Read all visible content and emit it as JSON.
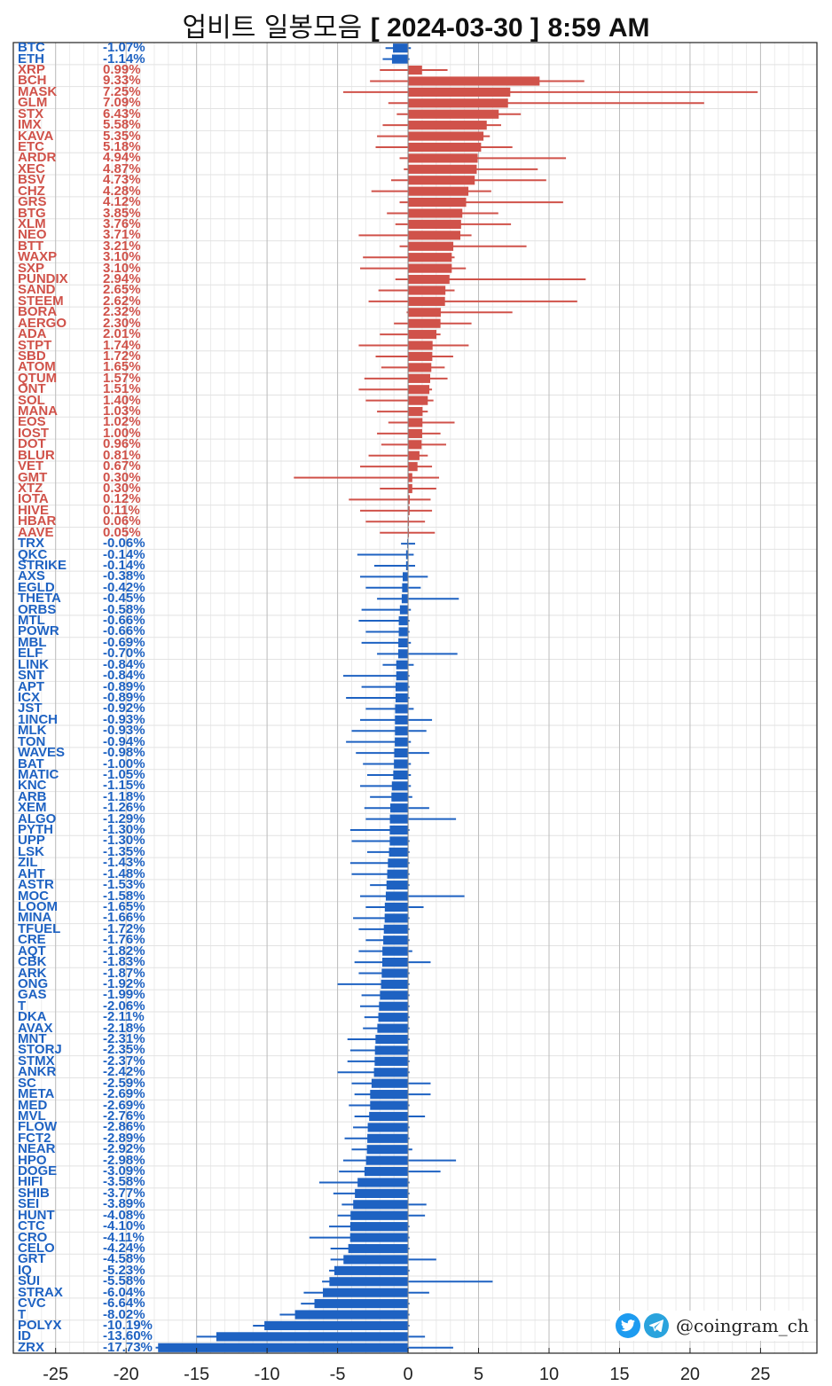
{
  "title": {
    "prefix": "업비트 일봉모음",
    "date": "[ 2024-03-30 ]",
    "time": "8:59 AM"
  },
  "brand": {
    "handle": "@coingram_ch",
    "icons": [
      "twitter-bird-icon",
      "telegram-plane-icon"
    ]
  },
  "colors": {
    "up": "#d0524a",
    "down": "#1e62c2",
    "grid": "#d6d6d6"
  },
  "chart_data": {
    "type": "bar",
    "orientation": "horizontal",
    "xlim": [
      -28,
      29
    ],
    "xticks": [
      -25,
      -20,
      -15,
      -10,
      -5,
      0,
      5,
      10,
      15,
      20,
      25
    ],
    "grid": true,
    "rows": [
      {
        "name": "BTC",
        "label": "-1.07%",
        "value": -1.07,
        "low": -1.6,
        "high": 0.2
      },
      {
        "name": "ETH",
        "label": "-1.14%",
        "value": -1.14,
        "low": -1.8,
        "high": 0.1
      },
      {
        "name": "XRP",
        "label": "0.99%",
        "value": 0.99,
        "low": -2.0,
        "high": 2.8
      },
      {
        "name": "BCH",
        "label": "9.33%",
        "value": 9.33,
        "low": -2.7,
        "high": 12.5
      },
      {
        "name": "MASK",
        "label": "7.25%",
        "value": 7.25,
        "low": -4.6,
        "high": 24.8
      },
      {
        "name": "GLM",
        "label": "7.09%",
        "value": 7.09,
        "low": -1.4,
        "high": 21.0
      },
      {
        "name": "STX",
        "label": "6.43%",
        "value": 6.43,
        "low": -0.8,
        "high": 8.0
      },
      {
        "name": "IMX",
        "label": "5.58%",
        "value": 5.58,
        "low": -1.8,
        "high": 6.6
      },
      {
        "name": "KAVA",
        "label": "5.35%",
        "value": 5.35,
        "low": -2.2,
        "high": 5.8
      },
      {
        "name": "ETC",
        "label": "5.18%",
        "value": 5.18,
        "low": -2.3,
        "high": 7.4
      },
      {
        "name": "ARDR",
        "label": "4.94%",
        "value": 4.94,
        "low": -0.6,
        "high": 11.2
      },
      {
        "name": "XEC",
        "label": "4.87%",
        "value": 4.87,
        "low": -0.3,
        "high": 9.2
      },
      {
        "name": "BSV",
        "label": "4.73%",
        "value": 4.73,
        "low": -1.2,
        "high": 9.8
      },
      {
        "name": "CHZ",
        "label": "4.28%",
        "value": 4.28,
        "low": -2.6,
        "high": 5.9
      },
      {
        "name": "GRS",
        "label": "4.12%",
        "value": 4.12,
        "low": -0.6,
        "high": 11.0
      },
      {
        "name": "BTG",
        "label": "3.85%",
        "value": 3.85,
        "low": -1.5,
        "high": 6.4
      },
      {
        "name": "XLM",
        "label": "3.76%",
        "value": 3.76,
        "low": -0.9,
        "high": 7.3
      },
      {
        "name": "NEO",
        "label": "3.71%",
        "value": 3.71,
        "low": -3.5,
        "high": 4.5
      },
      {
        "name": "BTT",
        "label": "3.21%",
        "value": 3.21,
        "low": -0.6,
        "high": 8.4
      },
      {
        "name": "WAXP",
        "label": "3.10%",
        "value": 3.1,
        "low": -3.2,
        "high": 3.3
      },
      {
        "name": "SXP",
        "label": "3.10%",
        "value": 3.1,
        "low": -3.4,
        "high": 4.1
      },
      {
        "name": "PUNDIX",
        "label": "2.94%",
        "value": 2.94,
        "low": -0.9,
        "high": 12.6
      },
      {
        "name": "SAND",
        "label": "2.65%",
        "value": 2.65,
        "low": -2.1,
        "high": 3.3
      },
      {
        "name": "STEEM",
        "label": "2.62%",
        "value": 2.62,
        "low": -2.8,
        "high": 12.0
      },
      {
        "name": "BORA",
        "label": "2.32%",
        "value": 2.32,
        "low": -0.1,
        "high": 7.4
      },
      {
        "name": "AERGO",
        "label": "2.30%",
        "value": 2.3,
        "low": -1.0,
        "high": 4.5
      },
      {
        "name": "ADA",
        "label": "2.01%",
        "value": 2.01,
        "low": -2.0,
        "high": 2.3
      },
      {
        "name": "STPT",
        "label": "1.74%",
        "value": 1.74,
        "low": -3.5,
        "high": 4.3
      },
      {
        "name": "SBD",
        "label": "1.72%",
        "value": 1.72,
        "low": -2.3,
        "high": 3.2
      },
      {
        "name": "ATOM",
        "label": "1.65%",
        "value": 1.65,
        "low": -1.9,
        "high": 2.6
      },
      {
        "name": "QTUM",
        "label": "1.57%",
        "value": 1.57,
        "low": -3.1,
        "high": 2.8
      },
      {
        "name": "ONT",
        "label": "1.51%",
        "value": 1.51,
        "low": -3.5,
        "high": 1.7
      },
      {
        "name": "SOL",
        "label": "1.40%",
        "value": 1.4,
        "low": -3.0,
        "high": 1.8
      },
      {
        "name": "MANA",
        "label": "1.03%",
        "value": 1.03,
        "low": -2.2,
        "high": 1.4
      },
      {
        "name": "EOS",
        "label": "1.02%",
        "value": 1.02,
        "low": -1.4,
        "high": 3.3
      },
      {
        "name": "IOST",
        "label": "1.00%",
        "value": 1.0,
        "low": -2.2,
        "high": 2.3
      },
      {
        "name": "DOT",
        "label": "0.96%",
        "value": 0.96,
        "low": -1.9,
        "high": 2.7
      },
      {
        "name": "BLUR",
        "label": "0.81%",
        "value": 0.81,
        "low": -2.8,
        "high": 1.4
      },
      {
        "name": "VET",
        "label": "0.67%",
        "value": 0.67,
        "low": -3.4,
        "high": 1.7
      },
      {
        "name": "GMT",
        "label": "0.30%",
        "value": 0.3,
        "low": -8.1,
        "high": 2.2
      },
      {
        "name": "XTZ",
        "label": "0.30%",
        "value": 0.3,
        "low": -2.0,
        "high": 2.0
      },
      {
        "name": "IOTA",
        "label": "0.12%",
        "value": 0.12,
        "low": -4.2,
        "high": 1.6
      },
      {
        "name": "HIVE",
        "label": "0.11%",
        "value": 0.11,
        "low": -3.4,
        "high": 1.7
      },
      {
        "name": "HBAR",
        "label": "0.06%",
        "value": 0.06,
        "low": -3.0,
        "high": 1.2
      },
      {
        "name": "AAVE",
        "label": "0.05%",
        "value": 0.05,
        "low": -2.0,
        "high": 1.9
      },
      {
        "name": "TRX",
        "label": "-0.06%",
        "value": -0.06,
        "low": -0.5,
        "high": 0.5
      },
      {
        "name": "QKC",
        "label": "-0.14%",
        "value": -0.14,
        "low": -3.6,
        "high": 0.4
      },
      {
        "name": "STRIKE",
        "label": "-0.14%",
        "value": -0.14,
        "low": -2.4,
        "high": 0.5
      },
      {
        "name": "AXS",
        "label": "-0.38%",
        "value": -0.38,
        "low": -3.4,
        "high": 1.4
      },
      {
        "name": "EGLD",
        "label": "-0.42%",
        "value": -0.42,
        "low": -3.0,
        "high": 0.9
      },
      {
        "name": "THETA",
        "label": "-0.45%",
        "value": -0.45,
        "low": -2.2,
        "high": 3.6
      },
      {
        "name": "ORBS",
        "label": "-0.58%",
        "value": -0.58,
        "low": -3.3,
        "high": 0.2
      },
      {
        "name": "MTL",
        "label": "-0.66%",
        "value": -0.66,
        "low": -3.5,
        "high": 0.1
      },
      {
        "name": "POWR",
        "label": "-0.66%",
        "value": -0.66,
        "low": -3.0,
        "high": 0.1
      },
      {
        "name": "MBL",
        "label": "-0.69%",
        "value": -0.69,
        "low": -3.3,
        "high": 0.2
      },
      {
        "name": "ELF",
        "label": "-0.70%",
        "value": -0.7,
        "low": -2.2,
        "high": 3.5
      },
      {
        "name": "LINK",
        "label": "-0.84%",
        "value": -0.84,
        "low": -1.8,
        "high": 0.4
      },
      {
        "name": "SNT",
        "label": "-0.84%",
        "value": -0.84,
        "low": -4.6,
        "high": 0.1
      },
      {
        "name": "APT",
        "label": "-0.89%",
        "value": -0.89,
        "low": -3.3,
        "high": 0.1
      },
      {
        "name": "ICX",
        "label": "-0.89%",
        "value": -0.89,
        "low": -4.4,
        "high": 0.1
      },
      {
        "name": "JST",
        "label": "-0.92%",
        "value": -0.92,
        "low": -3.0,
        "high": 0.4
      },
      {
        "name": "1INCH",
        "label": "-0.93%",
        "value": -0.93,
        "low": -3.4,
        "high": 1.7
      },
      {
        "name": "MLK",
        "label": "-0.93%",
        "value": -0.93,
        "low": -4.0,
        "high": 1.3
      },
      {
        "name": "TON",
        "label": "-0.94%",
        "value": -0.94,
        "low": -4.4,
        "high": 0.2
      },
      {
        "name": "WAVES",
        "label": "-0.98%",
        "value": -0.98,
        "low": -3.7,
        "high": 1.5
      },
      {
        "name": "BAT",
        "label": "-1.00%",
        "value": -1.0,
        "low": -3.2,
        "high": 0.2
      },
      {
        "name": "MATIC",
        "label": "-1.05%",
        "value": -1.05,
        "low": -2.9,
        "high": 0.2
      },
      {
        "name": "KNC",
        "label": "-1.15%",
        "value": -1.15,
        "low": -3.4,
        "high": 0.2
      },
      {
        "name": "ARB",
        "label": "-1.18%",
        "value": -1.18,
        "low": -2.7,
        "high": 0.3
      },
      {
        "name": "XEM",
        "label": "-1.26%",
        "value": -1.26,
        "low": -3.1,
        "high": 1.5
      },
      {
        "name": "ALGO",
        "label": "-1.29%",
        "value": -1.29,
        "low": -3.0,
        "high": 3.4
      },
      {
        "name": "PYTH",
        "label": "-1.30%",
        "value": -1.3,
        "low": -4.1,
        "high": 0.1
      },
      {
        "name": "UPP",
        "label": "-1.30%",
        "value": -1.3,
        "low": -4.0,
        "high": 0.1
      },
      {
        "name": "LSK",
        "label": "-1.35%",
        "value": -1.35,
        "low": -2.9,
        "high": 0.1
      },
      {
        "name": "ZIL",
        "label": "-1.43%",
        "value": -1.43,
        "low": -4.1,
        "high": 0.1
      },
      {
        "name": "AHT",
        "label": "-1.48%",
        "value": -1.48,
        "low": -4.0,
        "high": 0.1
      },
      {
        "name": "ASTR",
        "label": "-1.53%",
        "value": -1.53,
        "low": -2.7,
        "high": 0.1
      },
      {
        "name": "MOC",
        "label": "-1.58%",
        "value": -1.58,
        "low": -3.4,
        "high": 4.0
      },
      {
        "name": "LOOM",
        "label": "-1.65%",
        "value": -1.65,
        "low": -3.0,
        "high": 1.1
      },
      {
        "name": "MINA",
        "label": "-1.66%",
        "value": -1.66,
        "low": -3.9,
        "high": 0.1
      },
      {
        "name": "TFUEL",
        "label": "-1.72%",
        "value": -1.72,
        "low": -3.5,
        "high": 0.1
      },
      {
        "name": "CRE",
        "label": "-1.76%",
        "value": -1.76,
        "low": -3.0,
        "high": 0.1
      },
      {
        "name": "AQT",
        "label": "-1.82%",
        "value": -1.82,
        "low": -3.5,
        "high": 0.3
      },
      {
        "name": "CBK",
        "label": "-1.83%",
        "value": -1.83,
        "low": -3.8,
        "high": 1.6
      },
      {
        "name": "ARK",
        "label": "-1.87%",
        "value": -1.87,
        "low": -3.5,
        "high": 0.1
      },
      {
        "name": "ONG",
        "label": "-1.92%",
        "value": -1.92,
        "low": -5.0,
        "high": 0.1
      },
      {
        "name": "GAS",
        "label": "-1.99%",
        "value": -1.99,
        "low": -3.3,
        "high": 0.1
      },
      {
        "name": "T",
        "label": "-2.06%",
        "value": -2.06,
        "low": -3.4,
        "high": 0.1
      },
      {
        "name": "DKA",
        "label": "-2.11%",
        "value": -2.11,
        "low": -3.1,
        "high": 0.1
      },
      {
        "name": "AVAX",
        "label": "-2.18%",
        "value": -2.18,
        "low": -3.2,
        "high": 0.1
      },
      {
        "name": "MNT",
        "label": "-2.31%",
        "value": -2.31,
        "low": -4.3,
        "high": 0.1
      },
      {
        "name": "STORJ",
        "label": "-2.35%",
        "value": -2.35,
        "low": -4.1,
        "high": 0.1
      },
      {
        "name": "STMX",
        "label": "-2.37%",
        "value": -2.37,
        "low": -4.3,
        "high": 0.1
      },
      {
        "name": "ANKR",
        "label": "-2.42%",
        "value": -2.42,
        "low": -5.0,
        "high": 0.1
      },
      {
        "name": "SC",
        "label": "-2.59%",
        "value": -2.59,
        "low": -4.0,
        "high": 1.6
      },
      {
        "name": "META",
        "label": "-2.69%",
        "value": -2.69,
        "low": -3.8,
        "high": 1.6
      },
      {
        "name": "MED",
        "label": "-2.69%",
        "value": -2.69,
        "low": -4.2,
        "high": 0.1
      },
      {
        "name": "MVL",
        "label": "-2.76%",
        "value": -2.76,
        "low": -3.8,
        "high": 1.2
      },
      {
        "name": "FLOW",
        "label": "-2.86%",
        "value": -2.86,
        "low": -3.9,
        "high": 0.1
      },
      {
        "name": "FCT2",
        "label": "-2.89%",
        "value": -2.89,
        "low": -4.5,
        "high": 0.1
      },
      {
        "name": "NEAR",
        "label": "-2.92%",
        "value": -2.92,
        "low": -4.0,
        "high": 0.3
      },
      {
        "name": "HPO",
        "label": "-2.98%",
        "value": -2.98,
        "low": -4.6,
        "high": 3.4
      },
      {
        "name": "DOGE",
        "label": "-3.09%",
        "value": -3.09,
        "low": -4.9,
        "high": 2.3
      },
      {
        "name": "HIFI",
        "label": "-3.58%",
        "value": -3.58,
        "low": -6.3,
        "high": 0.1
      },
      {
        "name": "SHIB",
        "label": "-3.77%",
        "value": -3.77,
        "low": -5.3,
        "high": 0.1
      },
      {
        "name": "SEI",
        "label": "-3.89%",
        "value": -3.89,
        "low": -4.7,
        "high": 1.3
      },
      {
        "name": "HUNT",
        "label": "-4.08%",
        "value": -4.08,
        "low": -5.0,
        "high": 1.2
      },
      {
        "name": "CTC",
        "label": "-4.10%",
        "value": -4.1,
        "low": -5.6,
        "high": 0.1
      },
      {
        "name": "CRO",
        "label": "-4.11%",
        "value": -4.11,
        "low": -7.0,
        "high": 0.1
      },
      {
        "name": "CELO",
        "label": "-4.24%",
        "value": -4.24,
        "low": -5.5,
        "high": 0.1
      },
      {
        "name": "GRT",
        "label": "-4.58%",
        "value": -4.58,
        "low": -5.5,
        "high": 2.0
      },
      {
        "name": "IQ",
        "label": "-5.23%",
        "value": -5.23,
        "low": -5.6,
        "high": 0.1
      },
      {
        "name": "SUI",
        "label": "-5.58%",
        "value": -5.58,
        "low": -6.1,
        "high": 6.0
      },
      {
        "name": "STRAX",
        "label": "-6.04%",
        "value": -6.04,
        "low": -7.4,
        "high": 1.5
      },
      {
        "name": "CVC",
        "label": "-6.64%",
        "value": -6.64,
        "low": -7.6,
        "high": 0.1
      },
      {
        "name": "T",
        "label": "-8.02%",
        "value": -8.02,
        "low": -9.1,
        "high": 0.1
      },
      {
        "name": "POLYX",
        "label": "-10.19%",
        "value": -10.19,
        "low": -11.0,
        "high": 0.1
      },
      {
        "name": "ID",
        "label": "-13.60%",
        "value": -13.6,
        "low": -15.0,
        "high": 1.2
      },
      {
        "name": "ZRX",
        "label": "-17.73%",
        "value": -17.73,
        "low": -17.9,
        "high": 3.2
      }
    ]
  }
}
